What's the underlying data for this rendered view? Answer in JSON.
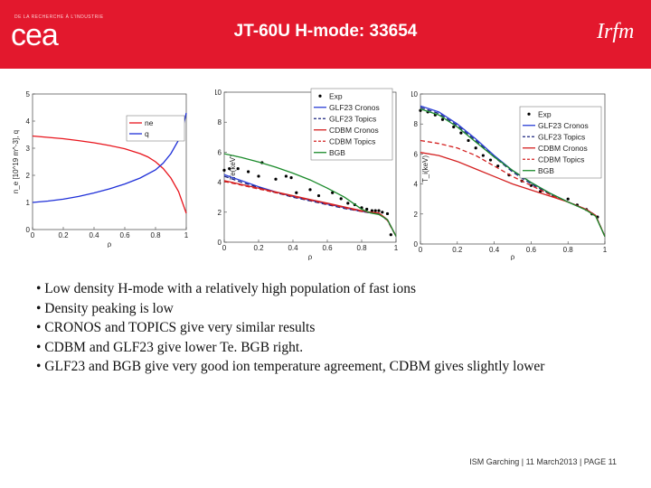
{
  "header": {
    "small_text": "DE LA RECHERCHE À L'INDUSTRIE",
    "logo_left": "cea",
    "title": "JT-60U H-mode: 33654",
    "logo_right": "Irfm"
  },
  "bullets": [
    "• Low density H-mode with a relatively high population of fast ions",
    "• Density peaking is low",
    "• CRONOS and TOPICS give very similar results",
    "• CDBM  and GLF23 give lower Te. BGB right.",
    "• GLF23 and BGB give very good ion temperature agreement, CDBM gives slightly lower"
  ],
  "footer": {
    "text": "ISM Garching | 11 March2013 | PAGE 11"
  },
  "chart_data": [
    {
      "type": "line",
      "xlabel": "ρ",
      "ylabel": "n_e [10^19 m^-3], q",
      "xlim": [
        0,
        1
      ],
      "ylim": [
        0,
        5
      ],
      "xticks": [
        "0",
        "0.2",
        "0.4",
        "0.6",
        "0.8",
        "1"
      ],
      "yticks": [
        "0",
        "1",
        "2",
        "3",
        "4",
        "5"
      ],
      "legend": "top-right",
      "series": [
        {
          "name": "ne",
          "color": "#e8141c",
          "dash": "",
          "x": [
            0,
            0.1,
            0.2,
            0.3,
            0.4,
            0.5,
            0.6,
            0.7,
            0.75,
            0.8,
            0.85,
            0.9,
            0.95,
            1.0
          ],
          "y": [
            3.45,
            3.4,
            3.35,
            3.28,
            3.2,
            3.1,
            2.98,
            2.8,
            2.68,
            2.5,
            2.25,
            1.9,
            1.4,
            0.6
          ]
        },
        {
          "name": "q",
          "color": "#1e2fd8",
          "dash": "",
          "x": [
            0,
            0.1,
            0.2,
            0.3,
            0.4,
            0.5,
            0.6,
            0.7,
            0.8,
            0.85,
            0.9,
            0.95,
            0.98,
            1.0
          ],
          "y": [
            1.0,
            1.05,
            1.12,
            1.22,
            1.35,
            1.5,
            1.68,
            1.9,
            2.2,
            2.45,
            2.8,
            3.3,
            3.8,
            4.3
          ]
        }
      ]
    },
    {
      "type": "line",
      "xlabel": "ρ",
      "ylabel": "Te(keV)",
      "xlim": [
        0,
        1
      ],
      "ylim": [
        0,
        10
      ],
      "xticks": [
        "0",
        "0.2",
        "0.4",
        "0.6",
        "0.8",
        "1"
      ],
      "yticks": [
        "0",
        "2",
        "4",
        "6",
        "8",
        "10"
      ],
      "legend": "top-right",
      "series": [
        {
          "name": "Exp",
          "color": "#000000",
          "dash": "",
          "markers": true,
          "x": [
            0.0,
            0.03,
            0.08,
            0.14,
            0.2,
            0.22,
            0.3,
            0.36,
            0.39,
            0.42,
            0.5,
            0.55,
            0.63,
            0.68,
            0.72,
            0.76,
            0.8,
            0.83,
            0.86,
            0.88,
            0.9,
            0.92,
            0.95,
            0.97
          ],
          "y": [
            4.8,
            4.9,
            4.9,
            4.7,
            4.4,
            5.3,
            4.2,
            4.4,
            4.3,
            3.3,
            3.5,
            3.1,
            3.3,
            2.9,
            2.6,
            2.5,
            2.3,
            2.2,
            2.1,
            2.1,
            2.1,
            2.0,
            1.9,
            0.5
          ]
        },
        {
          "name": "GLF23 Cronos",
          "color": "#2a3fd6",
          "dash": "",
          "x": [
            0,
            0.1,
            0.2,
            0.3,
            0.4,
            0.5,
            0.6,
            0.7,
            0.8,
            0.85,
            0.9,
            0.95,
            1.0
          ],
          "y": [
            4.5,
            4.1,
            3.7,
            3.35,
            3.05,
            2.8,
            2.55,
            2.3,
            2.05,
            2.0,
            1.9,
            1.5,
            0.4
          ]
        },
        {
          "name": "GLF23 Topics",
          "color": "#1a237e",
          "dash": "5 3",
          "x": [
            0,
            0.1,
            0.2,
            0.3,
            0.4,
            0.5,
            0.6,
            0.7,
            0.8,
            0.85,
            0.9,
            0.95,
            1.0
          ],
          "y": [
            4.4,
            4.0,
            3.65,
            3.3,
            3.0,
            2.75,
            2.5,
            2.25,
            2.05,
            1.95,
            1.9,
            1.45,
            0.4
          ]
        },
        {
          "name": "CDBM Cronos",
          "color": "#d42020",
          "dash": "",
          "x": [
            0,
            0.1,
            0.2,
            0.3,
            0.4,
            0.5,
            0.6,
            0.7,
            0.8,
            0.85,
            0.9,
            0.95,
            1.0
          ],
          "y": [
            4.1,
            3.85,
            3.6,
            3.35,
            3.1,
            2.85,
            2.6,
            2.35,
            2.1,
            2.0,
            1.95,
            1.5,
            0.4
          ]
        },
        {
          "name": "CDBM Topics",
          "color": "#d42020",
          "dash": "5 3",
          "x": [
            0,
            0.1,
            0.2,
            0.3,
            0.4,
            0.5,
            0.6,
            0.7,
            0.8,
            0.85,
            0.9,
            0.95,
            1.0
          ],
          "y": [
            4.05,
            3.8,
            3.55,
            3.3,
            3.05,
            2.8,
            2.55,
            2.3,
            2.05,
            1.98,
            1.92,
            1.45,
            0.4
          ]
        },
        {
          "name": "BGB",
          "color": "#1a8a2a",
          "dash": "",
          "x": [
            0,
            0.1,
            0.2,
            0.3,
            0.4,
            0.5,
            0.6,
            0.65,
            0.7,
            0.75,
            0.8,
            0.85,
            0.9,
            0.95,
            1.0
          ],
          "y": [
            5.9,
            5.65,
            5.35,
            5.0,
            4.6,
            4.15,
            3.6,
            3.3,
            3.0,
            2.6,
            2.2,
            1.95,
            1.85,
            1.5,
            0.4
          ]
        }
      ]
    },
    {
      "type": "line",
      "xlabel": "ρ",
      "ylabel": "T_i(keV)",
      "xlim": [
        0,
        1
      ],
      "ylim": [
        0,
        10
      ],
      "xticks": [
        "0",
        "0.2",
        "0.4",
        "0.6",
        "0.8",
        "1"
      ],
      "yticks": [
        "0",
        "2",
        "4",
        "6",
        "8",
        "10"
      ],
      "legend": "top-right",
      "series": [
        {
          "name": "Exp",
          "color": "#000000",
          "dash": "",
          "markers": true,
          "x": [
            0.0,
            0.04,
            0.08,
            0.12,
            0.18,
            0.22,
            0.26,
            0.3,
            0.34,
            0.38,
            0.42,
            0.48,
            0.55,
            0.6,
            0.65,
            0.72,
            0.8,
            0.85,
            0.9,
            0.93,
            0.96
          ],
          "y": [
            8.9,
            8.8,
            8.6,
            8.3,
            7.8,
            7.4,
            6.9,
            6.4,
            5.9,
            5.6,
            5.2,
            4.6,
            4.2,
            3.9,
            3.5,
            3.2,
            3.0,
            2.6,
            2.3,
            2.0,
            1.8
          ]
        },
        {
          "name": "GLF23 Cronos",
          "color": "#2a3fd6",
          "dash": "",
          "x": [
            0,
            0.1,
            0.2,
            0.3,
            0.4,
            0.5,
            0.6,
            0.7,
            0.8,
            0.9,
            0.95,
            1.0
          ],
          "y": [
            9.2,
            8.8,
            8.0,
            7.0,
            5.9,
            4.9,
            4.1,
            3.4,
            2.8,
            2.3,
            1.9,
            0.5
          ]
        },
        {
          "name": "GLF23 Topics",
          "color": "#1a237e",
          "dash": "5 3",
          "x": [
            0,
            0.1,
            0.2,
            0.3,
            0.4,
            0.5,
            0.6,
            0.7,
            0.8,
            0.9,
            0.95,
            1.0
          ],
          "y": [
            9.1,
            8.7,
            7.9,
            6.9,
            5.8,
            4.8,
            4.0,
            3.35,
            2.8,
            2.3,
            1.9,
            0.5
          ]
        },
        {
          "name": "CDBM Cronos",
          "color": "#d42020",
          "dash": "",
          "x": [
            0,
            0.1,
            0.2,
            0.3,
            0.4,
            0.5,
            0.6,
            0.7,
            0.8,
            0.9,
            0.95,
            1.0
          ],
          "y": [
            6.1,
            5.9,
            5.5,
            5.0,
            4.5,
            4.0,
            3.6,
            3.2,
            2.8,
            2.3,
            1.9,
            0.5
          ]
        },
        {
          "name": "CDBM Topics",
          "color": "#d42020",
          "dash": "5 3",
          "x": [
            0,
            0.1,
            0.2,
            0.3,
            0.4,
            0.5,
            0.6,
            0.7,
            0.8,
            0.9,
            0.95,
            1.0
          ],
          "y": [
            6.9,
            6.7,
            6.4,
            5.9,
            5.2,
            4.5,
            3.9,
            3.3,
            2.8,
            2.3,
            1.9,
            0.5
          ]
        },
        {
          "name": "BGB",
          "color": "#1a8a2a",
          "dash": "",
          "x": [
            0,
            0.1,
            0.2,
            0.3,
            0.4,
            0.5,
            0.6,
            0.7,
            0.8,
            0.9,
            0.95,
            1.0
          ],
          "y": [
            9.0,
            8.6,
            7.8,
            6.8,
            5.8,
            4.9,
            4.1,
            3.4,
            2.8,
            2.25,
            1.85,
            0.5
          ]
        }
      ]
    }
  ]
}
